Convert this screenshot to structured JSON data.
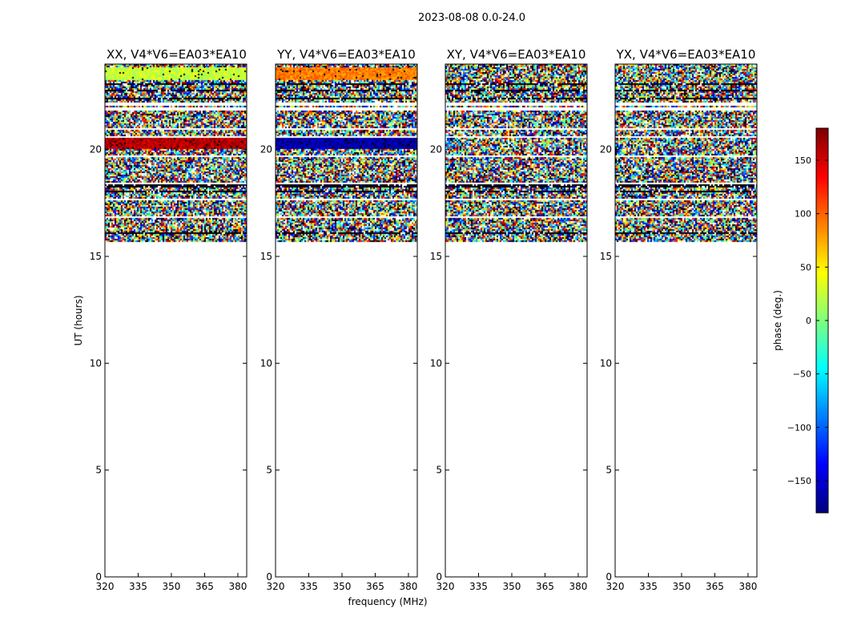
{
  "chart_data": {
    "type": "heatmap",
    "title": "2023-08-08 0.0-24.0",
    "xlabel": "frequency (MHz)",
    "ylabel": "UT (hours)",
    "xlim": [
      320,
      384
    ],
    "ylim": [
      0,
      24
    ],
    "xticks": [
      320,
      335,
      350,
      365,
      380
    ],
    "yticks": [
      0,
      5,
      10,
      15,
      20
    ],
    "colorbar": {
      "label": "phase (deg.)",
      "range": [
        -180,
        180
      ],
      "ticks": [
        -150,
        -100,
        -50,
        0,
        50,
        100,
        150
      ],
      "colormap": "jet"
    },
    "data_time_range_hours": [
      15.7,
      24.0
    ],
    "panels": [
      {
        "title": "XX, V4*V6=EA03*EA10",
        "polarization": "XX",
        "feature_bands": [
          {
            "ut": 23.6,
            "phase": 25
          },
          {
            "ut": 20.35,
            "phase": 160
          }
        ]
      },
      {
        "title": "YY, V4*V6=EA03*EA10",
        "polarization": "YY",
        "feature_bands": [
          {
            "ut": 23.6,
            "phase": 90
          },
          {
            "ut": 20.35,
            "phase": -165
          }
        ]
      },
      {
        "title": "XY, V4*V6=EA03*EA10",
        "polarization": "XY",
        "feature_bands": []
      },
      {
        "title": "YX, V4*V6=EA03*EA10",
        "polarization": "YX",
        "feature_bands": []
      }
    ]
  }
}
